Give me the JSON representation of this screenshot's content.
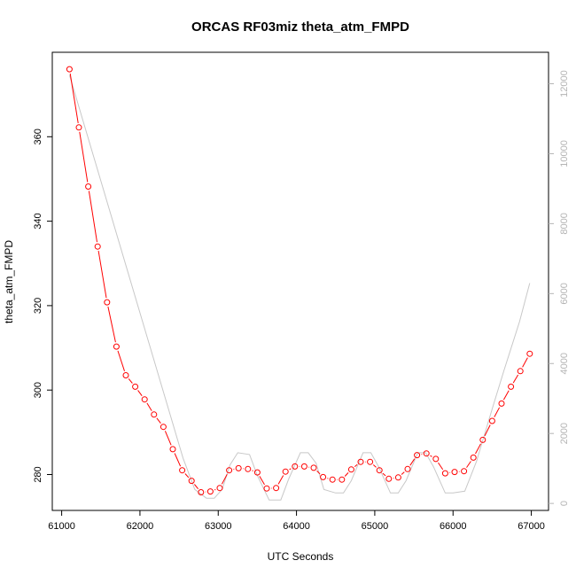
{
  "chart_data": {
    "type": "line",
    "title": "ORCAS RF03miz theta_atm_FMPD",
    "xlabel": "UTC Seconds",
    "ylabel": "theta_atm_FMPD",
    "xlim": [
      60880,
      67220
    ],
    "ylim": [
      271.5,
      380.0
    ],
    "y2lim": [
      -200,
      12900
    ],
    "x_ticks": [
      61000,
      62000,
      63000,
      64000,
      65000,
      66000,
      67000
    ],
    "y_ticks": [
      280,
      300,
      320,
      340,
      360
    ],
    "y2_ticks": [
      0,
      2000,
      4000,
      6000,
      8000,
      10000,
      12000
    ],
    "grid": false,
    "series": [
      {
        "axis": "left",
        "color": "#ff0000",
        "marker": "open-circle",
        "x": [
          61100,
          61220,
          61340,
          61460,
          61580,
          61700,
          61820,
          61940,
          62060,
          62180,
          62300,
          62420,
          62540,
          62660,
          62780,
          62900,
          63020,
          63140,
          63260,
          63380,
          63500,
          63620,
          63740,
          63860,
          63980,
          64100,
          64220,
          64340,
          64460,
          64580,
          64700,
          64820,
          64940,
          65060,
          65180,
          65300,
          65420,
          65540,
          65660,
          65780,
          65900,
          66020,
          66140,
          66260,
          66380,
          66500,
          66620,
          66740,
          66860,
          66980
        ],
        "y": [
          376.0,
          362.2,
          348.2,
          334.0,
          320.8,
          310.3,
          303.5,
          300.8,
          297.8,
          294.2,
          291.3,
          286.0,
          281.0,
          278.5,
          275.8,
          276.0,
          276.8,
          281.0,
          281.5,
          281.3,
          280.5,
          276.7,
          276.8,
          280.7,
          281.9,
          281.9,
          281.6,
          279.4,
          278.8,
          278.8,
          281.2,
          283.0,
          283.0,
          281.0,
          279.0,
          279.3,
          281.3,
          284.6,
          285.0,
          283.7,
          280.3,
          280.6,
          280.8,
          284.0,
          288.2,
          292.7,
          296.8,
          300.8,
          304.5,
          308.6
        ]
      },
      {
        "axis": "right",
        "color": "#c8c8c8",
        "marker": "none",
        "x": [
          61100,
          62550,
          62700,
          62850,
          62950,
          63050,
          63150,
          63250,
          63400,
          63500,
          63650,
          63800,
          63900,
          64050,
          64150,
          64250,
          64350,
          64500,
          64600,
          64700,
          64850,
          64950,
          65050,
          65200,
          65300,
          65400,
          65550,
          65650,
          65750,
          65900,
          66000,
          66150,
          66300,
          66500,
          66650,
          66850,
          66980
        ],
        "y": [
          12250,
          1300,
          400,
          150,
          150,
          400,
          1100,
          1450,
          1400,
          800,
          100,
          100,
          700,
          1450,
          1450,
          1150,
          400,
          300,
          300,
          650,
          1450,
          1450,
          1050,
          300,
          300,
          650,
          1450,
          1450,
          1050,
          300,
          300,
          350,
          1200,
          2700,
          3800,
          5200,
          6300
        ]
      }
    ]
  }
}
